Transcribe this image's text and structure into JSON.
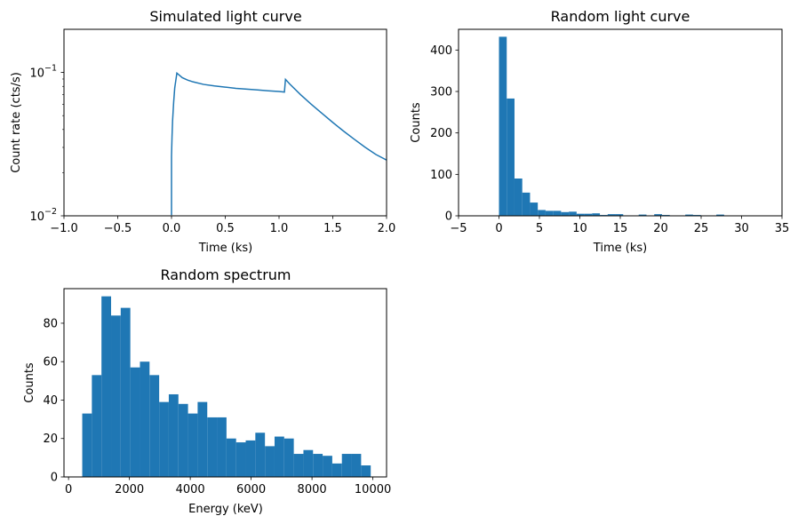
{
  "chart_data": [
    {
      "id": "c1",
      "type": "line",
      "title": "Simulated light curve",
      "xlabel": "Time (ks)",
      "ylabel": "Count rate (cts/s)",
      "xlim": [
        -1.0,
        2.0
      ],
      "ylim": [
        0.01,
        0.2
      ],
      "yscale": "log",
      "grid": false,
      "color": "#1f77b4",
      "xticks": [
        -1.0,
        -0.5,
        0.0,
        0.5,
        1.0,
        1.5,
        2.0
      ],
      "xtick_labels": [
        "−1.0",
        "−0.5",
        "0.0",
        "0.5",
        "1.0",
        "1.5",
        "2.0"
      ],
      "yticks": [
        0.01,
        0.1
      ],
      "series": [
        {
          "x": [
            0.0,
            0.0,
            0.005,
            0.01,
            0.02,
            0.03,
            0.05,
            0.1,
            0.15,
            0.2,
            0.3,
            0.4,
            0.5,
            0.6,
            0.7,
            0.8,
            0.9,
            1.0,
            1.05,
            1.06,
            1.1,
            1.2,
            1.3,
            1.4,
            1.5,
            1.6,
            1.7,
            1.8,
            1.9,
            2.0
          ],
          "y": [
            0.0101,
            0.026,
            0.036,
            0.046,
            0.062,
            0.078,
            0.099,
            0.092,
            0.0885,
            0.086,
            0.0825,
            0.0805,
            0.079,
            0.0775,
            0.0765,
            0.0755,
            0.0745,
            0.0737,
            0.073,
            0.0895,
            0.083,
            0.07,
            0.06,
            0.0518,
            0.0448,
            0.039,
            0.0342,
            0.0301,
            0.0268,
            0.0245
          ]
        }
      ]
    },
    {
      "id": "c2",
      "type": "bar",
      "title": "Random light curve",
      "xlabel": "Time (ks)",
      "ylabel": "Counts",
      "xlim": [
        -5,
        35
      ],
      "ylim": [
        0,
        450
      ],
      "grid": false,
      "color": "#1f77b4",
      "xticks": [
        -5,
        0,
        5,
        10,
        15,
        20,
        25,
        30,
        35
      ],
      "xtick_labels": [
        "−5",
        "0",
        "5",
        "10",
        "15",
        "20",
        "25",
        "30",
        "35"
      ],
      "yticks": [
        0,
        100,
        200,
        300,
        400
      ],
      "bin_edges": [
        0.0,
        0.96,
        1.92,
        2.88,
        3.84,
        4.8,
        5.76,
        6.72,
        7.68,
        8.64,
        9.6,
        10.56,
        11.52,
        12.48,
        13.44,
        14.4,
        15.36,
        16.32,
        17.28,
        18.24,
        19.2,
        20.16,
        21.12,
        22.08,
        23.04,
        24.0,
        24.96,
        25.92,
        26.88,
        27.84,
        28.8,
        29.76,
        30.72,
        31.68,
        32.64
      ],
      "values": [
        432,
        283,
        90,
        56,
        32,
        14,
        12,
        12,
        9,
        10,
        5,
        5,
        6,
        2,
        4,
        4,
        1,
        1,
        3,
        0,
        4,
        2,
        1,
        1,
        3,
        2,
        0,
        1,
        3,
        0,
        1,
        0,
        0,
        1
      ]
    },
    {
      "id": "c3",
      "type": "bar",
      "title": "Random spectrum",
      "xlabel": "Energy (keV)",
      "ylabel": "Counts",
      "xlim": [
        -150,
        10450
      ],
      "ylim": [
        0,
        98
      ],
      "grid": false,
      "color": "#1f77b4",
      "xticks": [
        0,
        2000,
        4000,
        6000,
        8000,
        10000
      ],
      "xtick_labels": [
        "0",
        "2000",
        "4000",
        "6000",
        "8000",
        "10000"
      ],
      "yticks": [
        0,
        20,
        40,
        60,
        80
      ],
      "bin_edges": [
        450,
        766,
        1082,
        1398,
        1714,
        2030,
        2346,
        2662,
        2978,
        3294,
        3610,
        3926,
        4242,
        4558,
        4874,
        5190,
        5506,
        5822,
        6138,
        6454,
        6770,
        7086,
        7402,
        7718,
        8034,
        8350,
        8666,
        8982,
        9298,
        9614,
        9930
      ],
      "values": [
        33,
        53,
        94,
        84,
        88,
        57,
        60,
        53,
        39,
        43,
        38,
        33,
        39,
        31,
        31,
        20,
        18,
        19,
        23,
        16,
        21,
        20,
        12,
        14,
        12,
        11,
        7,
        12,
        12,
        6
      ]
    }
  ]
}
